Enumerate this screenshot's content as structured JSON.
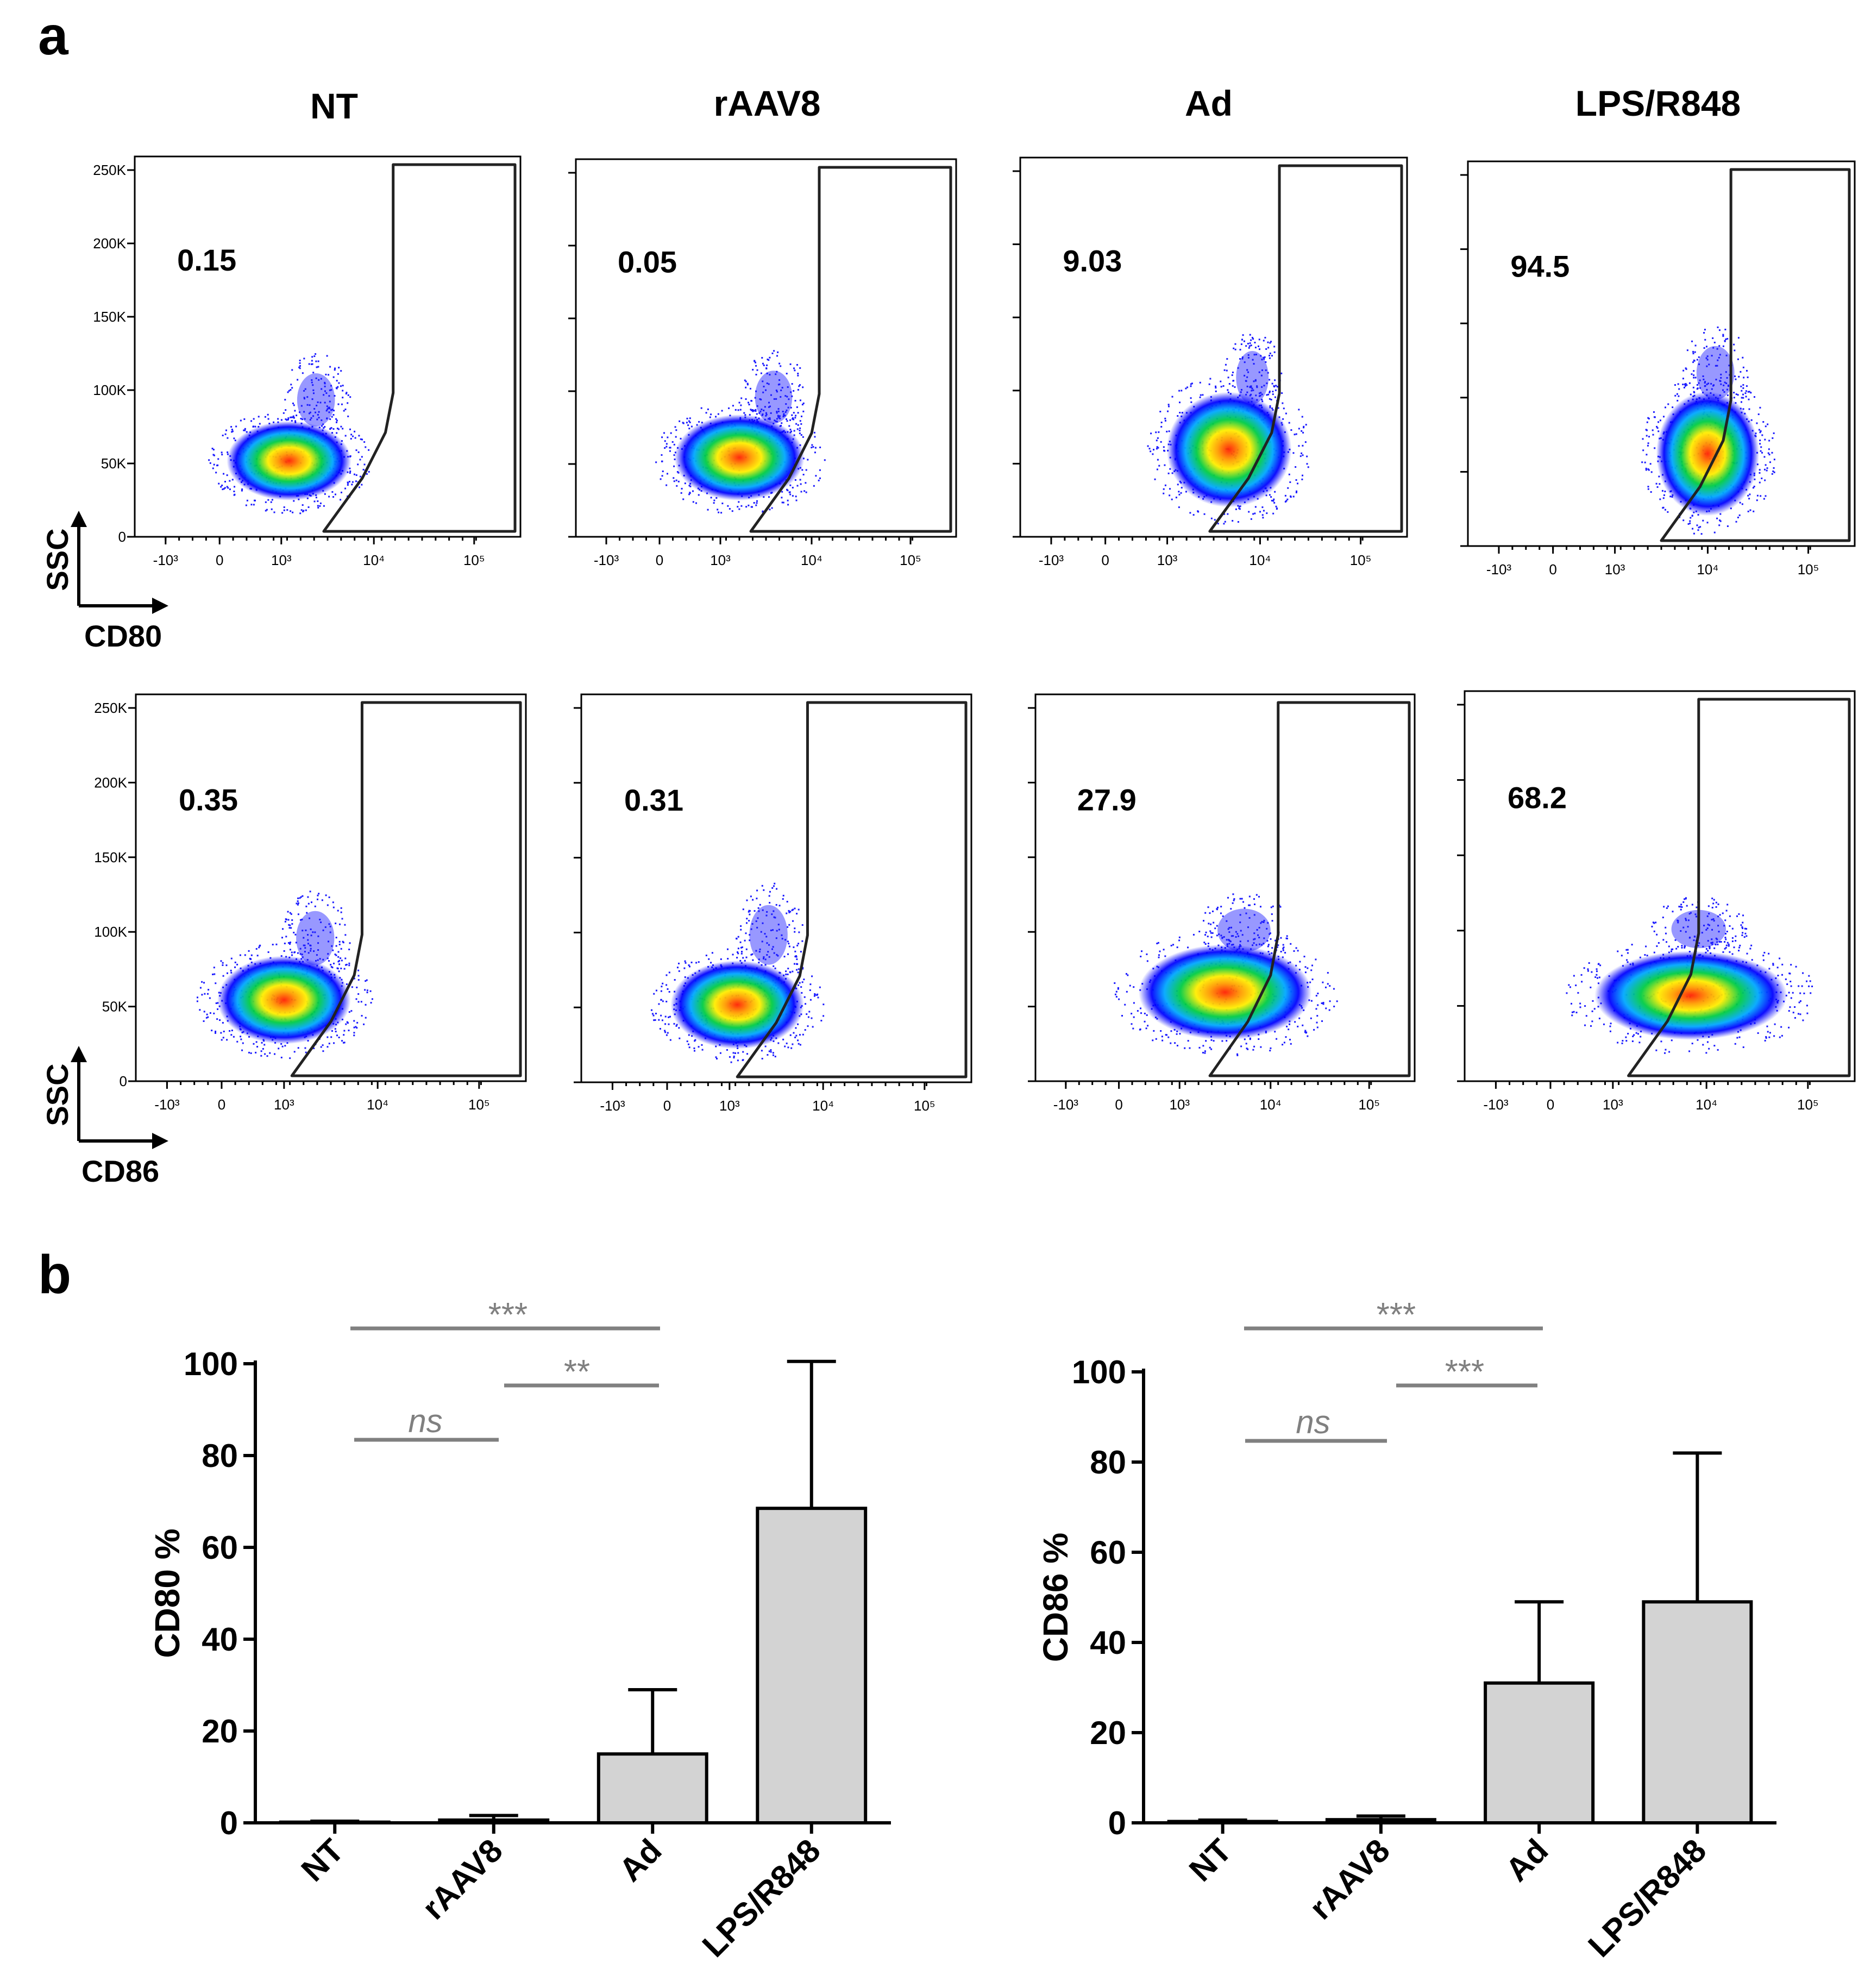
{
  "figure": {
    "panel_a_label": "a",
    "panel_b_label": "b"
  },
  "flow": {
    "conditions": [
      "NT",
      "rAAV8",
      "Ad",
      "LPS/R848"
    ],
    "rows": [
      {
        "marker": "CD80",
        "yaxis": "SSC",
        "percentages": [
          "0.15",
          "0.05",
          "9.03",
          "94.5"
        ]
      },
      {
        "marker": "CD86",
        "yaxis": "SSC",
        "percentages": [
          "0.35",
          "0.31",
          "27.9",
          "68.2"
        ]
      }
    ],
    "y_ticks": [
      "250K",
      "200K",
      "150K",
      "100K",
      "50K",
      "0"
    ],
    "x_ticks": [
      "-10³",
      "0",
      "10³",
      "10⁴",
      "10⁵"
    ],
    "colors": {
      "low": "#0000ff",
      "mid": "#00cc44",
      "high": "#ffee00",
      "peak": "#ff2000"
    }
  },
  "chart_data": [
    {
      "type": "bar",
      "categories": [
        "NT",
        "rAAV8",
        "Ad",
        "LPS/R848"
      ],
      "values": [
        0.15,
        0.6,
        15,
        68.5
      ],
      "errors": [
        0.2,
        1.0,
        14,
        32
      ],
      "ylabel": "CD80 %",
      "ylim": [
        0,
        100
      ],
      "yticks": [
        "0",
        "20",
        "40",
        "60",
        "80",
        "100"
      ],
      "bar_color": "#d3d3d3",
      "significance": [
        {
          "from": "NT",
          "to": "Ad",
          "label": "***"
        },
        {
          "from": "rAAV8",
          "to": "Ad",
          "label": "**"
        },
        {
          "from": "NT",
          "to": "rAAV8",
          "label": "ns"
        }
      ]
    },
    {
      "type": "bar",
      "categories": [
        "NT",
        "rAAV8",
        "Ad",
        "LPS/R848"
      ],
      "values": [
        0.3,
        0.7,
        31,
        49
      ],
      "errors": [
        0.3,
        0.8,
        18,
        33
      ],
      "ylabel": "CD86 %",
      "ylim": [
        0,
        100
      ],
      "yticks": [
        "0",
        "20",
        "40",
        "60",
        "80",
        "100"
      ],
      "bar_color": "#d3d3d3",
      "significance": [
        {
          "from": "NT",
          "to": "Ad",
          "label": "***"
        },
        {
          "from": "rAAV8",
          "to": "Ad",
          "label": "***"
        },
        {
          "from": "NT",
          "to": "rAAV8",
          "label": "ns"
        }
      ]
    }
  ]
}
